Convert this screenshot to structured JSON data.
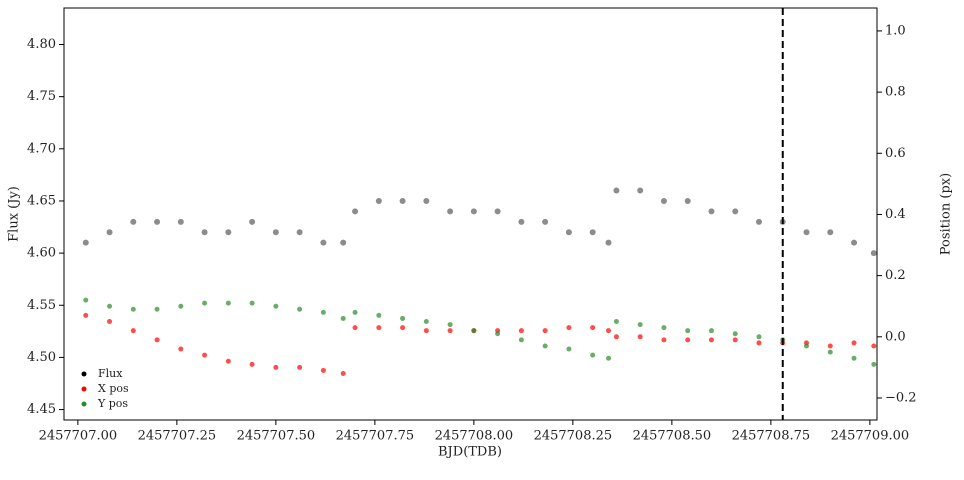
{
  "chart_data": {
    "type": "scatter",
    "xlabel": "BJD(TDB)",
    "ylabel": "Flux (Jy)",
    "y2label": "Position (px)",
    "x": [
      2457707.02,
      2457707.08,
      2457707.14,
      2457707.2,
      2457707.26,
      2457707.32,
      2457707.38,
      2457707.44,
      2457707.5,
      2457707.56,
      2457707.62,
      2457707.67,
      2457707.7,
      2457707.76,
      2457707.82,
      2457707.88,
      2457707.94,
      2457708.0,
      2457708.06,
      2457708.12,
      2457708.18,
      2457708.24,
      2457708.3,
      2457708.34,
      2457708.36,
      2457708.42,
      2457708.48,
      2457708.54,
      2457708.6,
      2457708.66,
      2457708.72,
      2457708.78,
      2457708.84,
      2457708.9,
      2457708.96,
      2457709.01
    ],
    "series": [
      {
        "name": "Flux",
        "color": "#000000",
        "values": [
          4.61,
          4.62,
          4.63,
          4.63,
          4.63,
          4.62,
          4.62,
          4.63,
          4.62,
          4.62,
          4.61,
          4.61,
          4.64,
          4.65,
          4.65,
          4.65,
          4.64,
          4.64,
          4.64,
          4.63,
          4.63,
          4.62,
          4.62,
          4.61,
          4.66,
          4.66,
          4.65,
          4.65,
          4.64,
          4.64,
          4.63,
          4.63,
          4.62,
          4.62,
          4.61,
          4.6
        ]
      },
      {
        "name": "X pos",
        "color": "#ff0000",
        "axis": "y2",
        "values": [
          0.07,
          0.05,
          0.02,
          -0.01,
          -0.04,
          -0.06,
          -0.08,
          -0.09,
          -0.1,
          -0.1,
          -0.11,
          -0.12,
          0.03,
          0.03,
          0.03,
          0.02,
          0.02,
          0.02,
          0.02,
          0.02,
          0.02,
          0.03,
          0.03,
          0.02,
          0.0,
          0.0,
          -0.01,
          -0.01,
          -0.01,
          -0.01,
          -0.02,
          -0.02,
          -0.02,
          -0.03,
          -0.02,
          -0.03
        ]
      },
      {
        "name": "Y pos",
        "color": "#2a8a2a",
        "axis": "y2",
        "values": [
          0.12,
          0.1,
          0.09,
          0.09,
          0.1,
          0.11,
          0.11,
          0.11,
          0.1,
          0.09,
          0.08,
          0.06,
          0.08,
          0.07,
          0.06,
          0.05,
          0.04,
          0.02,
          0.01,
          -0.01,
          -0.03,
          -0.04,
          -0.06,
          -0.07,
          0.05,
          0.04,
          0.03,
          0.02,
          0.02,
          0.01,
          0.0,
          -0.01,
          -0.03,
          -0.05,
          -0.07,
          -0.09
        ]
      }
    ],
    "xlim": [
      2457706.965,
      2457709.018
    ],
    "ylim": [
      4.44,
      4.835
    ],
    "y2lim": [
      -0.272,
      1.075
    ],
    "xticks": [
      {
        "value": 2457707,
        "label": "2457707.00"
      },
      {
        "value": 2457707.25,
        "label": "2457707.25"
      },
      {
        "value": 2457707.5,
        "label": "2457707.50"
      },
      {
        "value": 2457707.75,
        "label": "2457707.75"
      },
      {
        "value": 2457708,
        "label": "2457708.00"
      },
      {
        "value": 2457708.25,
        "label": "2457708.25"
      },
      {
        "value": 2457708.5,
        "label": "2457708.50"
      },
      {
        "value": 2457708.75,
        "label": "2457708.75"
      },
      {
        "value": 2457709,
        "label": "2457709.00"
      }
    ],
    "yticks": [
      4.45,
      {
        "value": 4.5,
        "label": "4.50"
      },
      4.55,
      {
        "value": 4.6,
        "label": "4.60"
      },
      4.65,
      {
        "value": 4.7,
        "label": "4.70"
      },
      4.75,
      {
        "value": 4.8,
        "label": "4.80"
      }
    ],
    "y2ticks": [
      {
        "value": -0.2,
        "label": "−0.2"
      },
      {
        "value": 0,
        "label": "0.0"
      },
      0.2,
      0.4,
      0.6,
      0.8,
      {
        "value": 1,
        "label": "1.0"
      }
    ],
    "vline": {
      "x": 2457708.78,
      "color": "#000000"
    },
    "legend": "lower left"
  }
}
